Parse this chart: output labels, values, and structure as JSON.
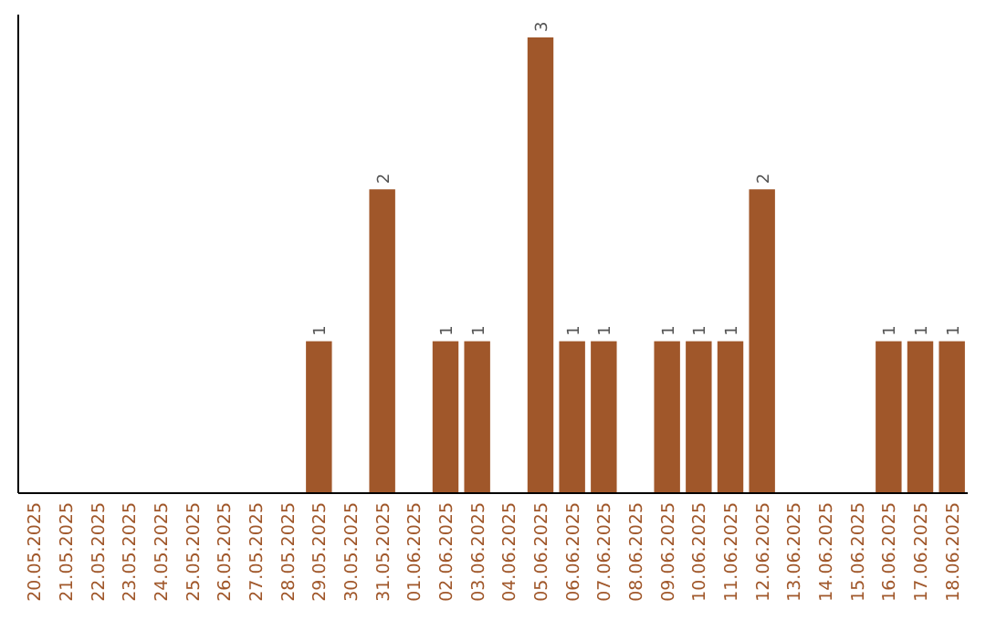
{
  "chart_data": {
    "type": "bar",
    "categories": [
      "20.05.2025",
      "21.05.2025",
      "22.05.2025",
      "23.05.2025",
      "24.05.2025",
      "25.05.2025",
      "26.05.2025",
      "27.05.2025",
      "28.05.2025",
      "29.05.2025",
      "30.05.2025",
      "31.05.2025",
      "01.06.2025",
      "02.06.2025",
      "03.06.2025",
      "04.06.2025",
      "05.06.2025",
      "06.06.2025",
      "07.06.2025",
      "08.06.2025",
      "09.06.2025",
      "10.06.2025",
      "11.06.2025",
      "12.06.2025",
      "13.06.2025",
      "14.06.2025",
      "15.06.2025",
      "16.06.2025",
      "17.06.2025",
      "18.06.2025"
    ],
    "values": [
      0,
      0,
      0,
      0,
      0,
      0,
      0,
      0,
      0,
      1,
      0,
      2,
      0,
      1,
      1,
      0,
      3,
      1,
      1,
      0,
      1,
      1,
      1,
      2,
      0,
      0,
      0,
      1,
      1,
      1
    ],
    "value_labels": [
      null,
      null,
      null,
      null,
      null,
      null,
      null,
      null,
      null,
      "1",
      null,
      "2",
      null,
      "1",
      "1",
      null,
      "3",
      "1",
      "1",
      null,
      "1",
      "1",
      "1",
      "2",
      null,
      null,
      null,
      "1",
      "1",
      "1"
    ],
    "color": "#a0572a"
  }
}
